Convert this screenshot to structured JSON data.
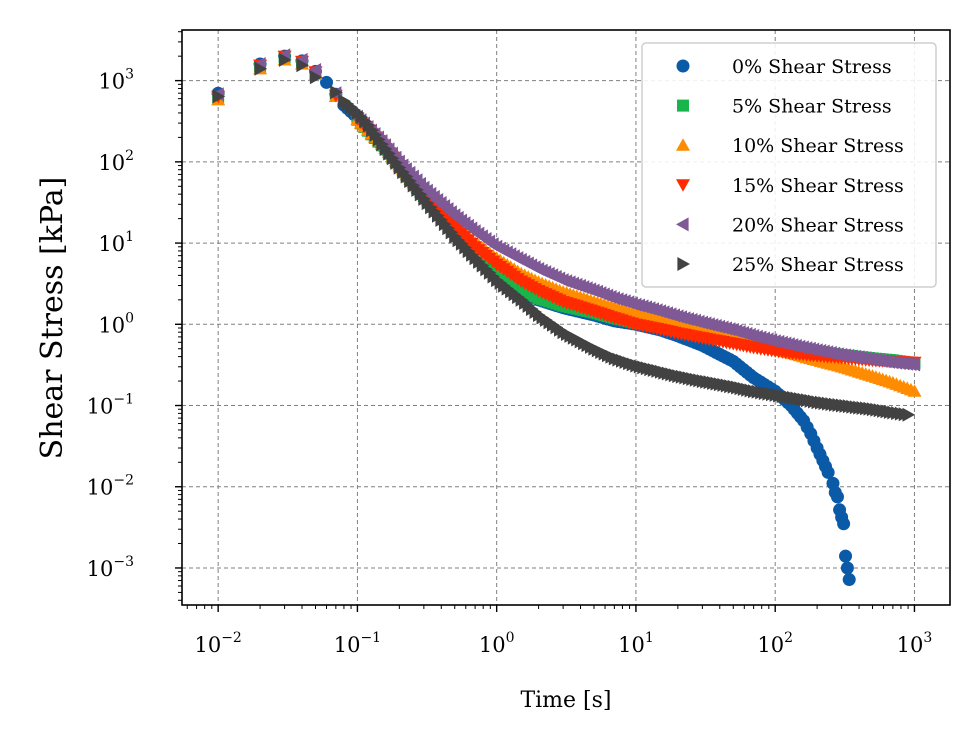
{
  "chart_data": {
    "type": "scatter",
    "xlabel": "Time [s]",
    "ylabel": "Shear Stress [kPa]",
    "xscale": "log",
    "yscale": "log",
    "xlim": [
      0.0055,
      1800
    ],
    "ylim": [
      0.00035,
      4200
    ],
    "grid": true,
    "legend": "top-right",
    "x_ticks": [
      {
        "base": "10",
        "exp": "−2",
        "value": 0.01
      },
      {
        "base": "10",
        "exp": "−1",
        "value": 0.1
      },
      {
        "base": "10",
        "exp": "0",
        "value": 1
      },
      {
        "base": "10",
        "exp": "1",
        "value": 10
      },
      {
        "base": "10",
        "exp": "2",
        "value": 100
      },
      {
        "base": "10",
        "exp": "3",
        "value": 1000
      }
    ],
    "y_ticks": [
      {
        "base": "10",
        "exp": "−3",
        "value": 0.001
      },
      {
        "base": "10",
        "exp": "−2",
        "value": 0.01
      },
      {
        "base": "10",
        "exp": "−1",
        "value": 0.1
      },
      {
        "base": "10",
        "exp": "0",
        "value": 1
      },
      {
        "base": "10",
        "exp": "1",
        "value": 10
      },
      {
        "base": "10",
        "exp": "2",
        "value": 100
      },
      {
        "base": "10",
        "exp": "3",
        "value": 1000
      }
    ],
    "series": [
      {
        "name": "0% Shear Stress",
        "color": "#0a5aa8",
        "marker": "circle",
        "x": [
          0.01,
          0.02,
          0.03,
          0.04,
          0.05,
          0.06,
          0.07,
          0.08,
          0.1,
          0.13,
          0.2,
          0.3,
          0.5,
          0.7,
          1,
          1.5,
          2,
          3,
          5,
          7,
          10,
          15,
          20,
          30,
          50,
          70,
          100,
          130,
          160,
          180,
          200,
          220,
          240,
          260,
          270,
          280,
          290,
          300,
          310,
          320,
          330,
          340
        ],
        "y": [
          700,
          1600,
          2000,
          1750,
          1300,
          950,
          680,
          500,
          350,
          210,
          90,
          38,
          14,
          7,
          4,
          2.5,
          2,
          1.6,
          1.3,
          1.1,
          1.0,
          0.85,
          0.72,
          0.55,
          0.35,
          0.22,
          0.15,
          0.1,
          0.065,
          0.045,
          0.03,
          0.021,
          0.015,
          0.011,
          0.0085,
          0.0075,
          0.0052,
          0.0042,
          0.0035,
          0.0014,
          0.001,
          0.00072
        ]
      },
      {
        "name": "5% Shear Stress",
        "color": "#19b44a",
        "marker": "square",
        "x": [
          0.01,
          0.02,
          0.03,
          0.04,
          0.05,
          0.07,
          0.1,
          0.15,
          0.2,
          0.3,
          0.5,
          0.7,
          1,
          1.5,
          2,
          3,
          5,
          7,
          10,
          15,
          20,
          30,
          50,
          70,
          100,
          150,
          200,
          300,
          500,
          700,
          1000
        ],
        "y": [
          620,
          1500,
          1950,
          1700,
          1250,
          650,
          330,
          160,
          88,
          38,
          15,
          8,
          4.5,
          2.7,
          2.1,
          1.7,
          1.4,
          1.2,
          1.05,
          0.95,
          0.88,
          0.78,
          0.67,
          0.6,
          0.55,
          0.5,
          0.46,
          0.42,
          0.38,
          0.36,
          0.33
        ]
      },
      {
        "name": "10% Shear Stress",
        "color": "#ff8c00",
        "marker": "triangle-up",
        "x": [
          0.01,
          0.02,
          0.03,
          0.04,
          0.05,
          0.07,
          0.1,
          0.15,
          0.2,
          0.3,
          0.5,
          0.7,
          1,
          1.5,
          2,
          3,
          5,
          7,
          10,
          15,
          20,
          30,
          50,
          70,
          100,
          150,
          200,
          300,
          500,
          700,
          1000
        ],
        "y": [
          580,
          1400,
          1800,
          1600,
          1200,
          640,
          330,
          165,
          92,
          40,
          17,
          10,
          6.5,
          4.2,
          3.3,
          2.5,
          1.9,
          1.6,
          1.35,
          1.15,
          1.0,
          0.85,
          0.68,
          0.58,
          0.5,
          0.41,
          0.36,
          0.3,
          0.23,
          0.19,
          0.15
        ]
      },
      {
        "name": "15% Shear Stress",
        "color": "#ff2a00",
        "marker": "triangle-down",
        "x": [
          0.01,
          0.02,
          0.03,
          0.04,
          0.05,
          0.07,
          0.1,
          0.15,
          0.2,
          0.3,
          0.5,
          0.7,
          1,
          1.5,
          2,
          3,
          5,
          7,
          10,
          15,
          20,
          30,
          50,
          70,
          100,
          150,
          200,
          300,
          500,
          700,
          1000
        ],
        "y": [
          640,
          1550,
          2000,
          1720,
          1280,
          660,
          340,
          165,
          90,
          39,
          16,
          9,
          5.5,
          3.4,
          2.6,
          1.9,
          1.45,
          1.2,
          1.0,
          0.87,
          0.78,
          0.68,
          0.58,
          0.52,
          0.47,
          0.43,
          0.41,
          0.39,
          0.36,
          0.35,
          0.34
        ]
      },
      {
        "name": "20% Shear Stress",
        "color": "#7f5896",
        "marker": "triangle-left",
        "x": [
          0.01,
          0.02,
          0.03,
          0.04,
          0.05,
          0.07,
          0.1,
          0.15,
          0.2,
          0.3,
          0.5,
          0.7,
          1,
          1.5,
          2,
          3,
          5,
          7,
          10,
          15,
          20,
          30,
          50,
          70,
          100,
          150,
          200,
          300,
          500,
          700,
          1000
        ],
        "y": [
          680,
          1600,
          2050,
          1800,
          1350,
          700,
          360,
          180,
          100,
          48,
          22,
          14,
          9,
          6.2,
          4.8,
          3.5,
          2.6,
          2.1,
          1.75,
          1.45,
          1.25,
          1.05,
          0.85,
          0.72,
          0.62,
          0.53,
          0.48,
          0.42,
          0.37,
          0.34,
          0.32
        ]
      },
      {
        "name": "25% Shear Stress",
        "color": "#424242",
        "marker": "triangle-right",
        "x": [
          0.01,
          0.02,
          0.03,
          0.04,
          0.05,
          0.07,
          0.08,
          0.1,
          0.12,
          0.15,
          0.2,
          0.3,
          0.5,
          0.7,
          1,
          1.5,
          2,
          3,
          5,
          7,
          10,
          15,
          20,
          30,
          50,
          70,
          100,
          150,
          200,
          300,
          500,
          700,
          900
        ],
        "y": [
          640,
          1400,
          1800,
          1550,
          1100,
          720,
          560,
          400,
          280,
          165,
          85,
          35,
          12,
          6.5,
          3.5,
          2.0,
          1.3,
          0.8,
          0.5,
          0.38,
          0.31,
          0.26,
          0.23,
          0.2,
          0.17,
          0.15,
          0.135,
          0.12,
          0.11,
          0.1,
          0.09,
          0.082,
          0.077
        ]
      }
    ]
  }
}
